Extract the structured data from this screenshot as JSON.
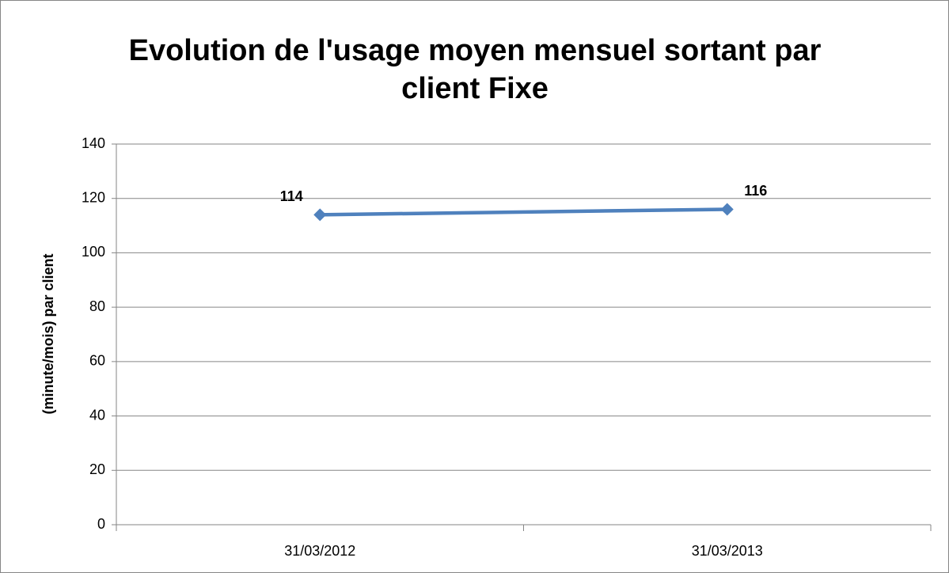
{
  "chart_data": {
    "type": "line",
    "title": "Evolution de l'usage moyen mensuel sortant par client Fixe",
    "y_label": "(minute/mois) par client",
    "categories": [
      "31/03/2012",
      "31/03/2013"
    ],
    "series": [
      {
        "name": "Fixe",
        "color": "#4f81bd",
        "values": [
          114,
          116
        ]
      }
    ],
    "ylim": [
      0,
      140
    ],
    "yticks": [
      0,
      20,
      40,
      60,
      80,
      100,
      120,
      140
    ],
    "grid": true
  }
}
